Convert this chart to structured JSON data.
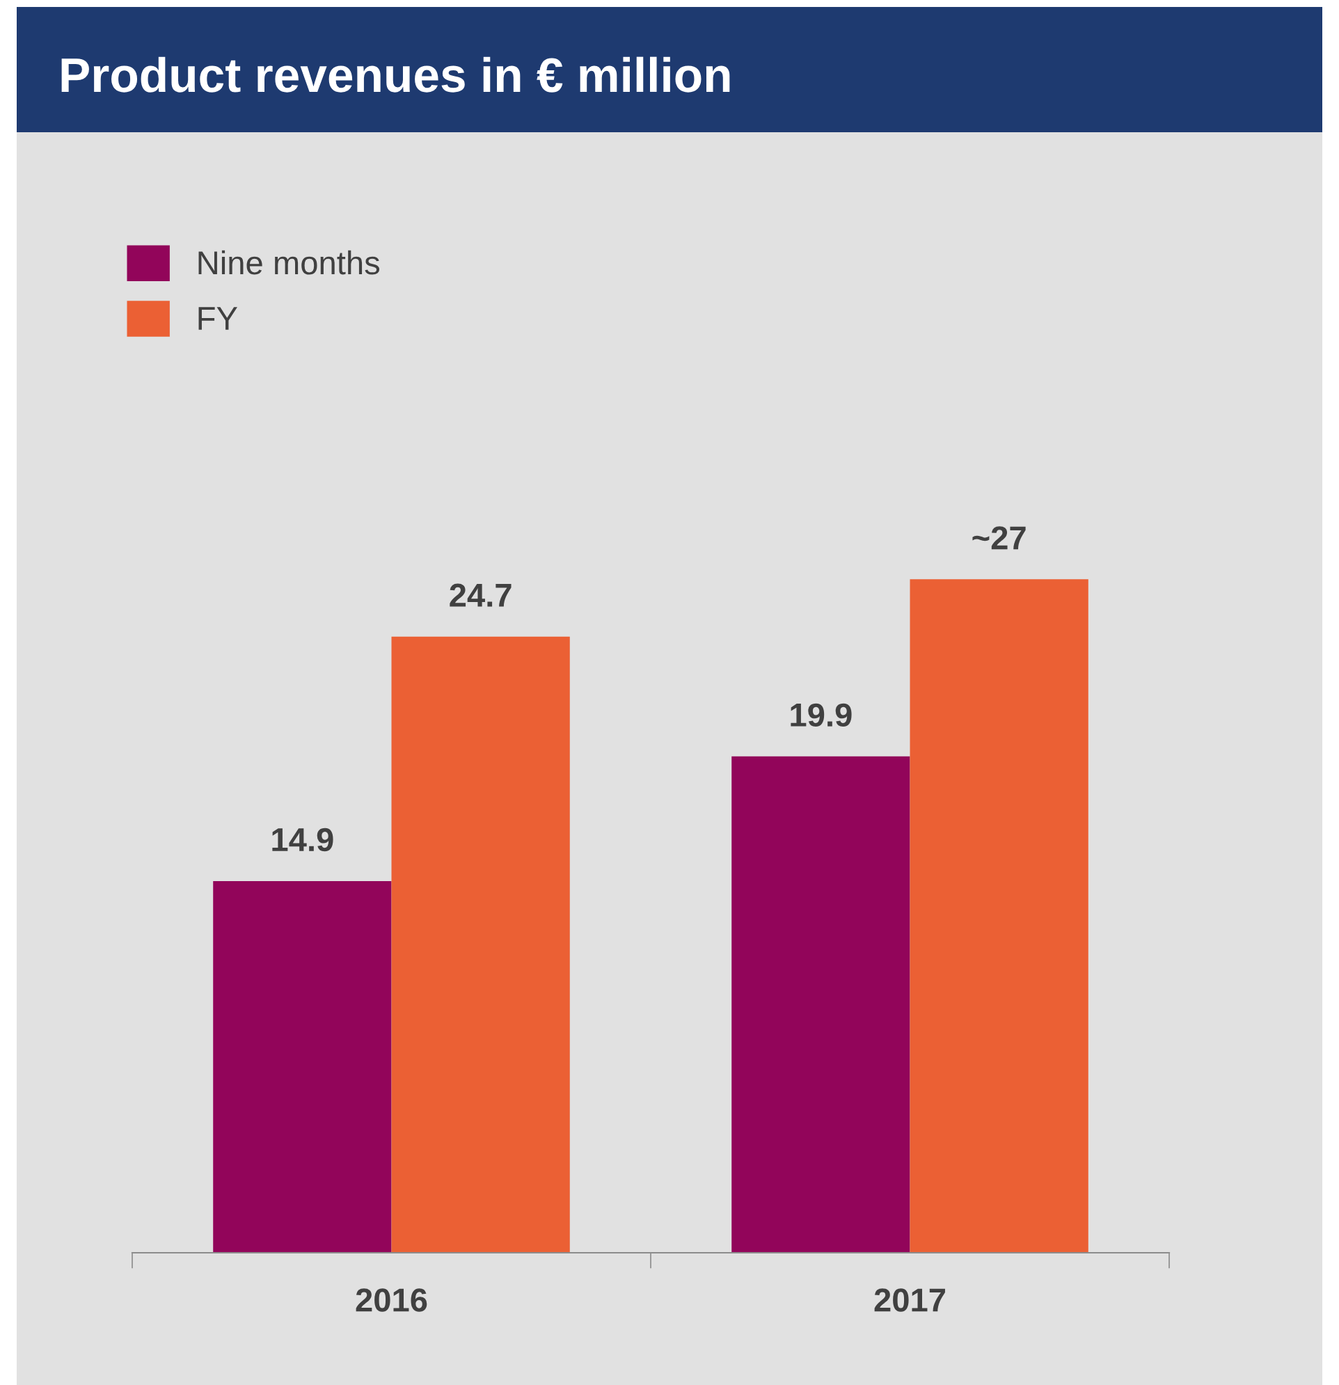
{
  "chart_data": {
    "type": "bar",
    "title": "Product revenues in € million",
    "categories": [
      "2016",
      "2017"
    ],
    "series": [
      {
        "name": "Nine months",
        "color": "#92055a",
        "values": [
          14.9,
          19.9
        ],
        "value_labels": [
          "14.9",
          "19.9"
        ]
      },
      {
        "name": "FY",
        "color": "#eb6034",
        "values": [
          24.7,
          27
        ],
        "value_labels": [
          "24.7",
          "~27"
        ]
      }
    ],
    "legend": "top left",
    "grid": false
  }
}
